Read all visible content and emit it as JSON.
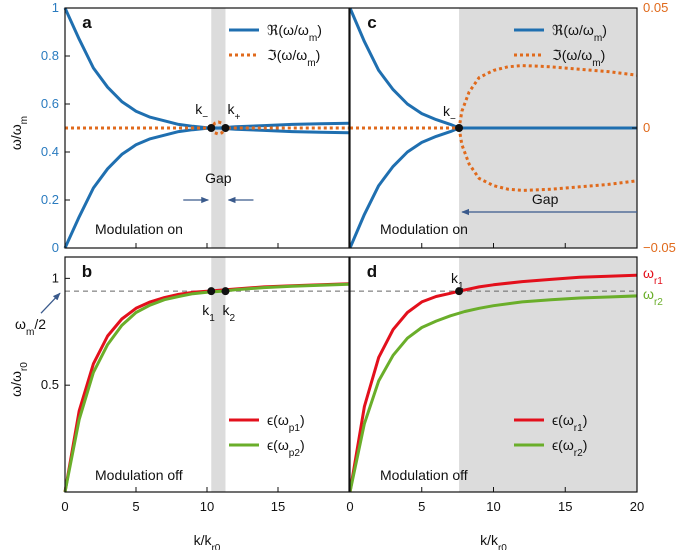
{
  "colors": {
    "blue": "#1f6fb0",
    "orange": "#e06a1c",
    "red": "#e3101c",
    "green": "#6aae2a",
    "gray": "#dcdcdc",
    "tick_blue": "#2a7bbf",
    "tick_orange": "#e06a1c"
  },
  "chart_data": [
    {
      "panel": "a",
      "type": "line",
      "xlim": [
        0,
        20
      ],
      "ylim": [
        0,
        1
      ],
      "left_ticks": [
        "0",
        "0.2",
        "0.4",
        "0.6",
        "0.8",
        "1"
      ],
      "ylabel": "ω/ω_m",
      "shade": [
        10.3,
        11.3
      ],
      "legend": [
        "ℜ(ω/ω_m)",
        "ℑ(ω/ω_m)"
      ],
      "annotations": {
        "k_minus": "k_−",
        "k_plus": "k_+",
        "gap": "Gap",
        "modulation": "Modulation on"
      },
      "series": [
        {
          "name": "ℜ(ω/ω_m)",
          "x": [
            0,
            1,
            2,
            3,
            4,
            5,
            6,
            7,
            8,
            9,
            10,
            10.8,
            12,
            14,
            16,
            18,
            20
          ],
          "y": [
            1.0,
            0.87,
            0.75,
            0.67,
            0.61,
            0.57,
            0.545,
            0.53,
            0.515,
            0.507,
            0.501,
            0.5,
            0.505,
            0.51,
            0.515,
            0.518,
            0.52
          ]
        },
        {
          "name": "ℜ(ω/ω_m)",
          "x": [
            0,
            1,
            2,
            3,
            4,
            5,
            6,
            7,
            8,
            9,
            10,
            10.8,
            12,
            14,
            16,
            18,
            20
          ],
          "y": [
            0.0,
            0.13,
            0.25,
            0.33,
            0.39,
            0.43,
            0.455,
            0.47,
            0.485,
            0.493,
            0.499,
            0.5,
            0.495,
            0.49,
            0.485,
            0.482,
            0.48
          ]
        },
        {
          "name": "ℑ(ω/ω_m)",
          "x": [
            0,
            10.3,
            10.55,
            10.8,
            11.05,
            11.3,
            20
          ],
          "y": [
            0.5,
            0.5,
            0.52,
            0.525,
            0.52,
            0.5,
            0.5
          ]
        },
        {
          "name": "ℑ(ω/ω_m)",
          "x": [
            10.3,
            10.55,
            10.8,
            11.05,
            11.3
          ],
          "y": [
            0.5,
            0.48,
            0.475,
            0.48,
            0.5
          ]
        }
      ],
      "points": [
        {
          "x": 10.3,
          "y": 0.5
        },
        {
          "x": 11.3,
          "y": 0.5
        }
      ]
    },
    {
      "panel": "c",
      "type": "line",
      "xlim": [
        0,
        20
      ],
      "ylim": [
        0,
        1
      ],
      "right_ylim": [
        -0.05,
        0.05
      ],
      "right_ticks": [
        "0.05",
        "0",
        "−0.05"
      ],
      "shade": [
        7.6,
        20
      ],
      "legend": [
        "ℜ(ω/ω_m)",
        "ℑ(ω/ω_m)"
      ],
      "annotations": {
        "k_minus": "k_−",
        "gap": "Gap",
        "modulation": "Modulation on"
      },
      "series": [
        {
          "name": "ℜ(ω/ω_m)",
          "x": [
            0,
            1,
            2,
            3,
            4,
            5,
            6,
            7,
            7.6,
            20
          ],
          "y": [
            1.0,
            0.86,
            0.74,
            0.66,
            0.6,
            0.56,
            0.535,
            0.515,
            0.5,
            0.5
          ]
        },
        {
          "name": "ℜ(ω/ω_m)",
          "x": [
            0,
            1,
            2,
            3,
            4,
            5,
            6,
            7,
            7.6
          ],
          "y": [
            0.0,
            0.14,
            0.26,
            0.34,
            0.4,
            0.44,
            0.465,
            0.485,
            0.5
          ]
        },
        {
          "name": "ℑ(ω/ω_m)",
          "x": [
            0,
            7.6,
            7.8,
            8.3,
            9,
            10,
            11,
            12,
            13,
            14,
            16,
            18,
            20
          ],
          "y": [
            0.5,
            0.5,
            0.57,
            0.65,
            0.71,
            0.74,
            0.755,
            0.76,
            0.758,
            0.755,
            0.745,
            0.735,
            0.72
          ]
        },
        {
          "name": "ℑ(ω/ω_m)",
          "x": [
            7.6,
            7.8,
            8.3,
            9,
            10,
            11,
            12,
            13,
            14,
            16,
            18,
            20
          ],
          "y": [
            0.5,
            0.43,
            0.35,
            0.29,
            0.26,
            0.245,
            0.24,
            0.242,
            0.245,
            0.255,
            0.265,
            0.28
          ]
        }
      ],
      "points": [
        {
          "x": 7.6,
          "y": 0.5
        }
      ]
    },
    {
      "panel": "b",
      "type": "line",
      "xlim": [
        0,
        20
      ],
      "ylim": [
        0,
        1.1
      ],
      "left_ticks": [
        "0.5",
        "1"
      ],
      "x_ticks": [
        "0",
        "5",
        "10",
        "15"
      ],
      "xlabel": "k/k_r0",
      "ylabel": "ω/ω_r0",
      "hline": 0.94,
      "hline_label": "ω_m/2",
      "shade": [
        10.3,
        11.3
      ],
      "legend": [
        "ϵ(ω_p1)",
        "ϵ(ω_p2)"
      ],
      "annotations": {
        "k1": "k_1",
        "k2": "k_2",
        "modulation": "Modulation off"
      },
      "series": [
        {
          "name": "ϵ(ω_p1)",
          "x": [
            0,
            1,
            2,
            3,
            4,
            5,
            6,
            7,
            8,
            9,
            10,
            11,
            12,
            14,
            16,
            18,
            20
          ],
          "y": [
            0.0,
            0.38,
            0.6,
            0.73,
            0.81,
            0.86,
            0.89,
            0.91,
            0.925,
            0.935,
            0.94,
            0.945,
            0.95,
            0.96,
            0.965,
            0.97,
            0.975
          ]
        },
        {
          "name": "ϵ(ω_p2)",
          "x": [
            0,
            1,
            2,
            3,
            4,
            5,
            6,
            7,
            8,
            9,
            10,
            11,
            12,
            14,
            16,
            18,
            20
          ],
          "y": [
            0.0,
            0.34,
            0.56,
            0.69,
            0.78,
            0.84,
            0.875,
            0.9,
            0.915,
            0.928,
            0.935,
            0.94,
            0.947,
            0.957,
            0.963,
            0.968,
            0.972
          ]
        }
      ],
      "points": [
        {
          "x": 10.3,
          "y": 0.94
        },
        {
          "x": 11.3,
          "y": 0.94
        }
      ]
    },
    {
      "panel": "d",
      "type": "line",
      "xlim": [
        0,
        20
      ],
      "ylim": [
        0,
        1.1
      ],
      "x_ticks": [
        "0",
        "5",
        "10",
        "15",
        "20"
      ],
      "xlabel": "k/k_r0",
      "hline": 0.94,
      "shade": [
        7.6,
        20
      ],
      "legend": [
        "ϵ(ω_r1)",
        "ϵ(ω_r2)"
      ],
      "series_labels": [
        "ω_r1",
        "ω_r2"
      ],
      "annotations": {
        "k1": "k_1",
        "modulation": "Modulation off"
      },
      "series": [
        {
          "name": "ϵ(ω_r1)",
          "x": [
            0,
            1,
            2,
            3,
            4,
            5,
            6,
            7,
            7.6,
            9,
            10,
            12,
            14,
            16,
            18,
            20
          ],
          "y": [
            0.0,
            0.4,
            0.63,
            0.76,
            0.84,
            0.89,
            0.915,
            0.93,
            0.94,
            0.96,
            0.97,
            0.985,
            0.995,
            1.005,
            1.01,
            1.015
          ]
        },
        {
          "name": "ϵ(ω_r2)",
          "x": [
            0,
            1,
            2,
            3,
            4,
            5,
            6,
            7,
            8,
            9,
            10,
            12,
            14,
            16,
            18,
            20
          ],
          "y": [
            0.0,
            0.32,
            0.52,
            0.64,
            0.72,
            0.77,
            0.8,
            0.825,
            0.845,
            0.86,
            0.872,
            0.89,
            0.9,
            0.908,
            0.913,
            0.918
          ]
        }
      ],
      "points": [
        {
          "x": 7.6,
          "y": 0.94
        }
      ]
    }
  ]
}
